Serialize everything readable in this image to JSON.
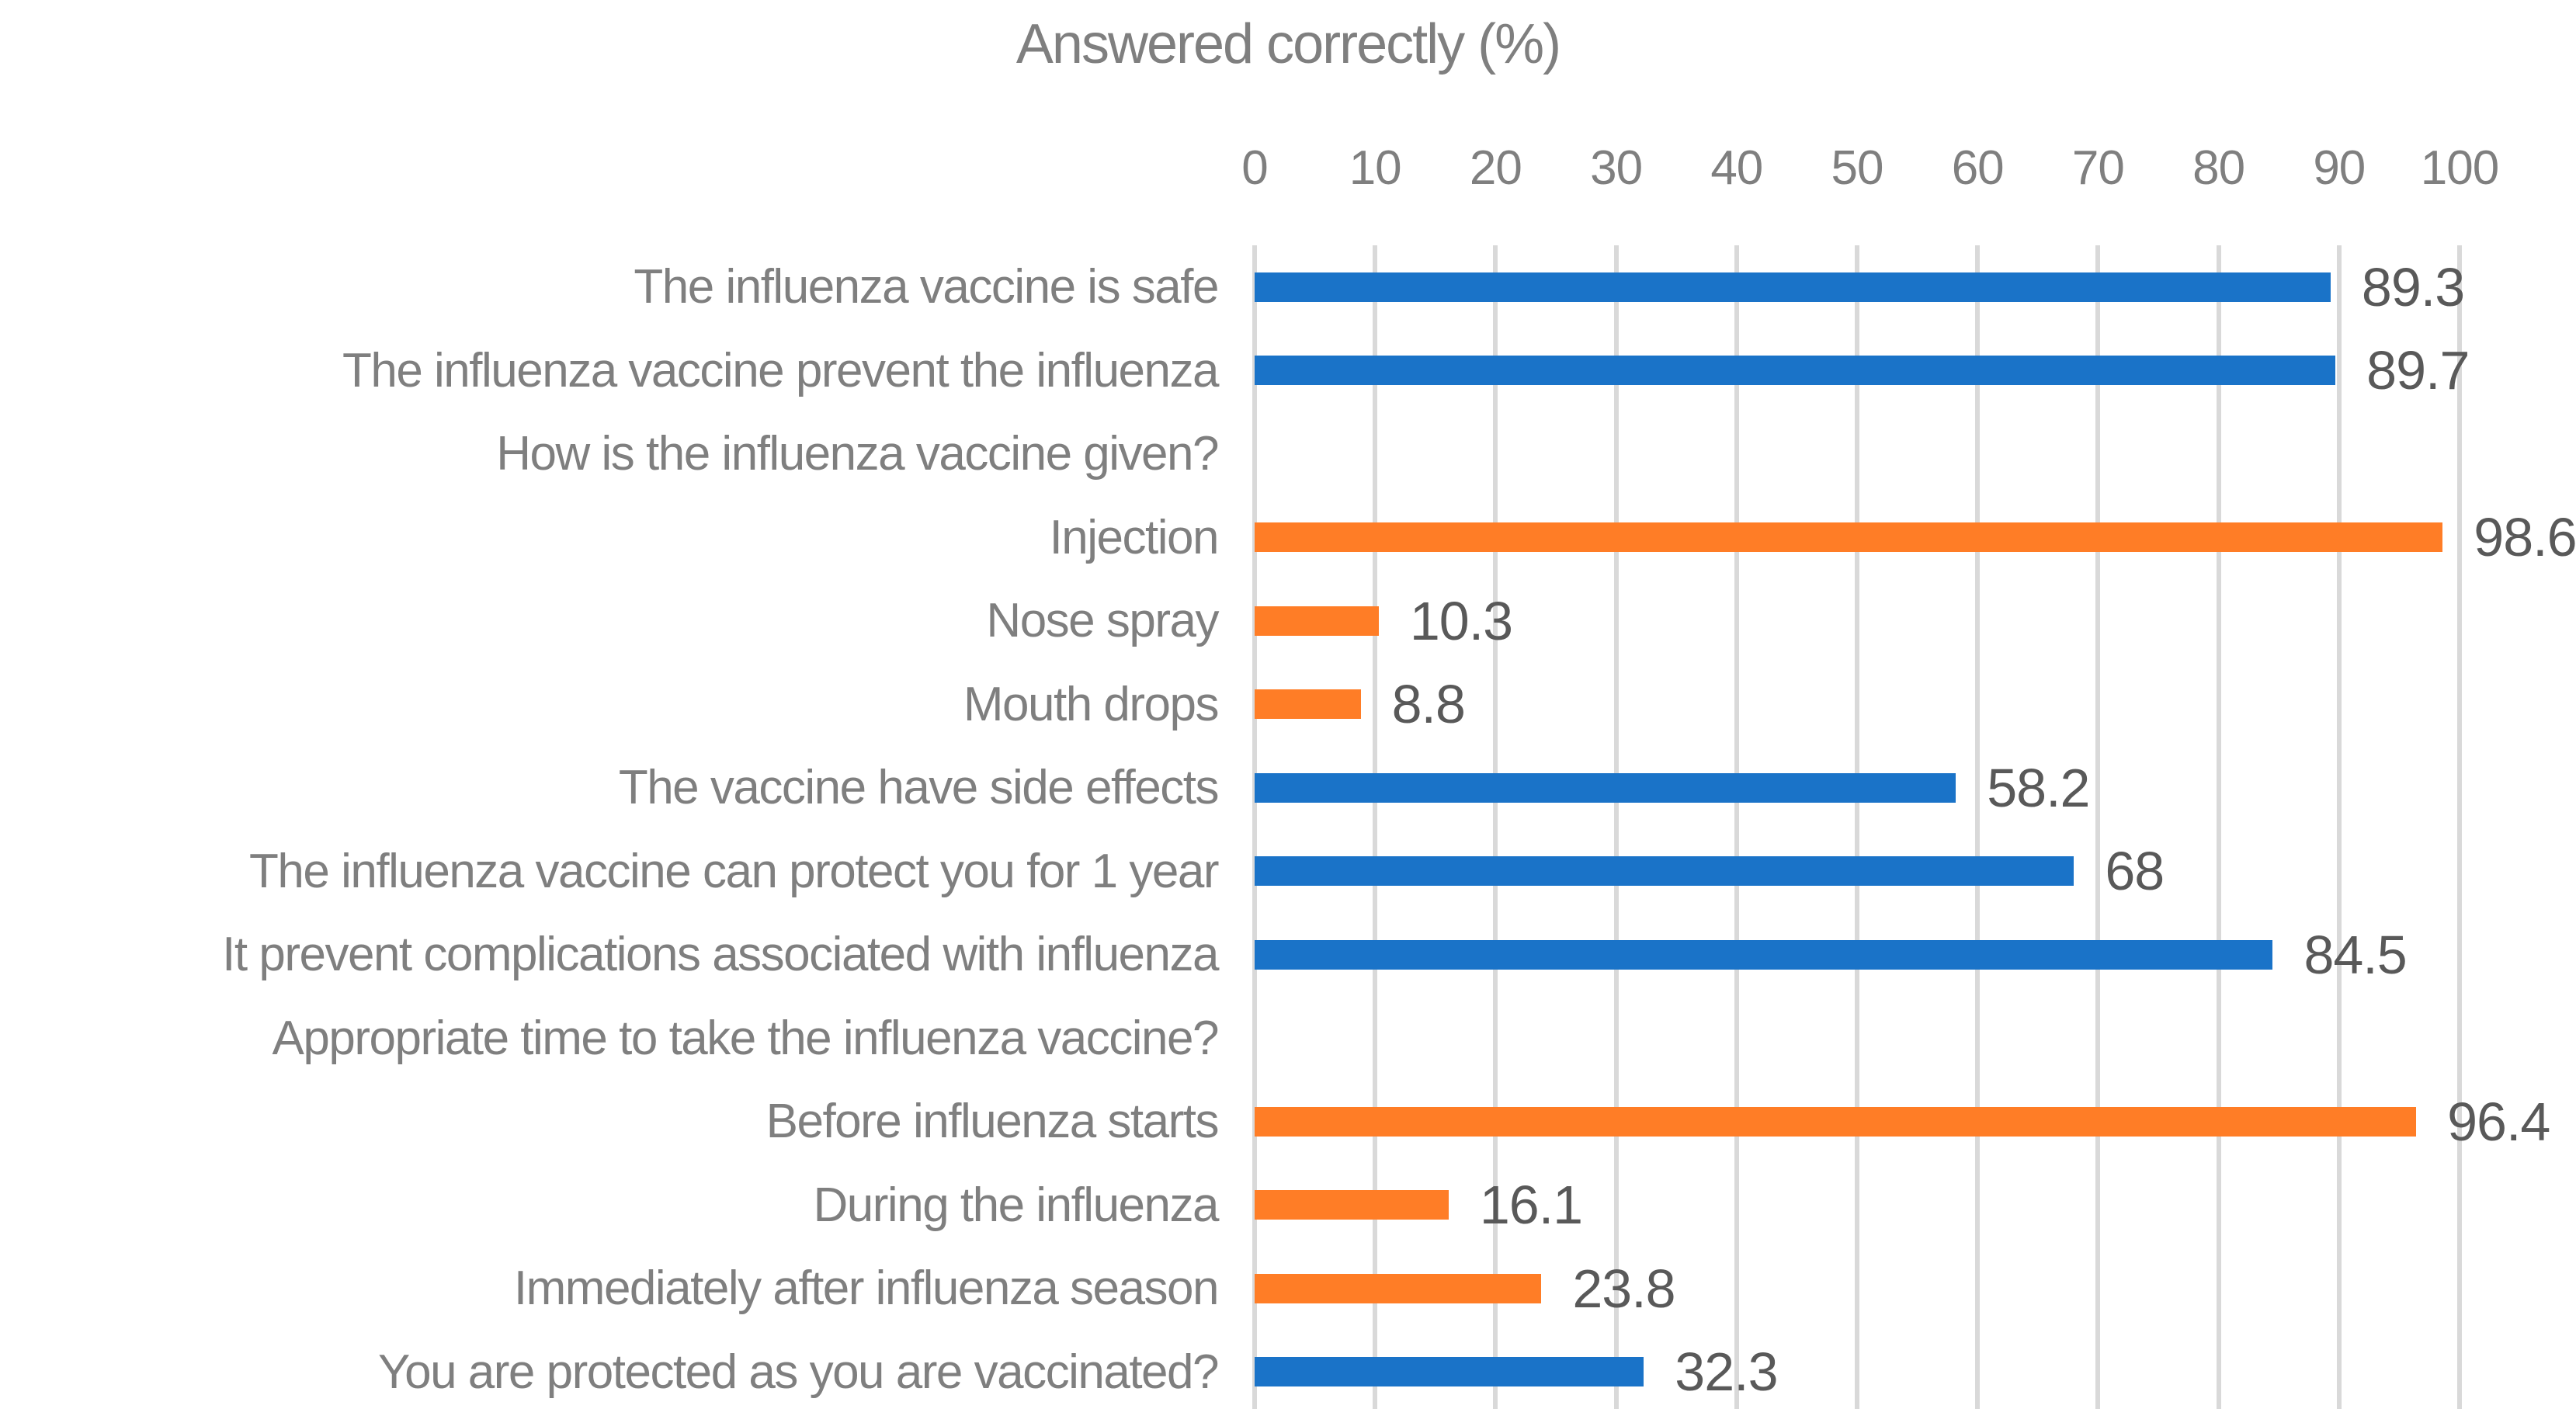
{
  "title": "Answered correctly (%)",
  "colors": {
    "blue": "#1A73C8",
    "orange": "#FF7D26",
    "gridline": "#D9D9D9",
    "title_text": "#7F7F7F",
    "axis_text": "#7F7F7F",
    "category_text": "#7F7F7F",
    "value_text": "#595959",
    "background": "#FFFFFF"
  },
  "chart_data": {
    "type": "bar",
    "orientation": "horizontal",
    "title": "Answered correctly (%)",
    "xlabel": "Answered correctly (%)",
    "ylabel": "",
    "xlim": [
      0,
      100
    ],
    "x_ticks": [
      0,
      10,
      20,
      30,
      40,
      50,
      60,
      70,
      80,
      90,
      100
    ],
    "grid": true,
    "legend": false,
    "categories": [
      "The influenza vaccine is safe",
      "The influenza vaccine prevent the influenza",
      "How is the influenza vaccine given?",
      "Injection",
      "Nose spray",
      "Mouth drops",
      "The vaccine have side effects",
      "The influenza vaccine can protect you for 1 year",
      "It prevent complications associated with influenza",
      "Appropriate time to take the influenza vaccine?",
      "Before influenza starts",
      "During the influenza",
      "Immediately after influenza season",
      "You are protected as you are vaccinated?"
    ],
    "values": [
      89.3,
      89.7,
      null,
      98.6,
      10.3,
      8.8,
      58.2,
      68,
      84.5,
      null,
      96.4,
      16.1,
      23.8,
      32.3
    ],
    "value_labels": [
      "89.3",
      "89.7",
      "",
      "98.6",
      "10.3",
      "8.8",
      "58.2",
      "68",
      "84.5",
      "",
      "96.4",
      "16.1",
      "23.8",
      "32.3"
    ],
    "bar_colors": [
      "blue",
      "blue",
      null,
      "orange",
      "orange",
      "orange",
      "blue",
      "blue",
      "blue",
      null,
      "orange",
      "orange",
      "orange",
      "blue"
    ]
  }
}
